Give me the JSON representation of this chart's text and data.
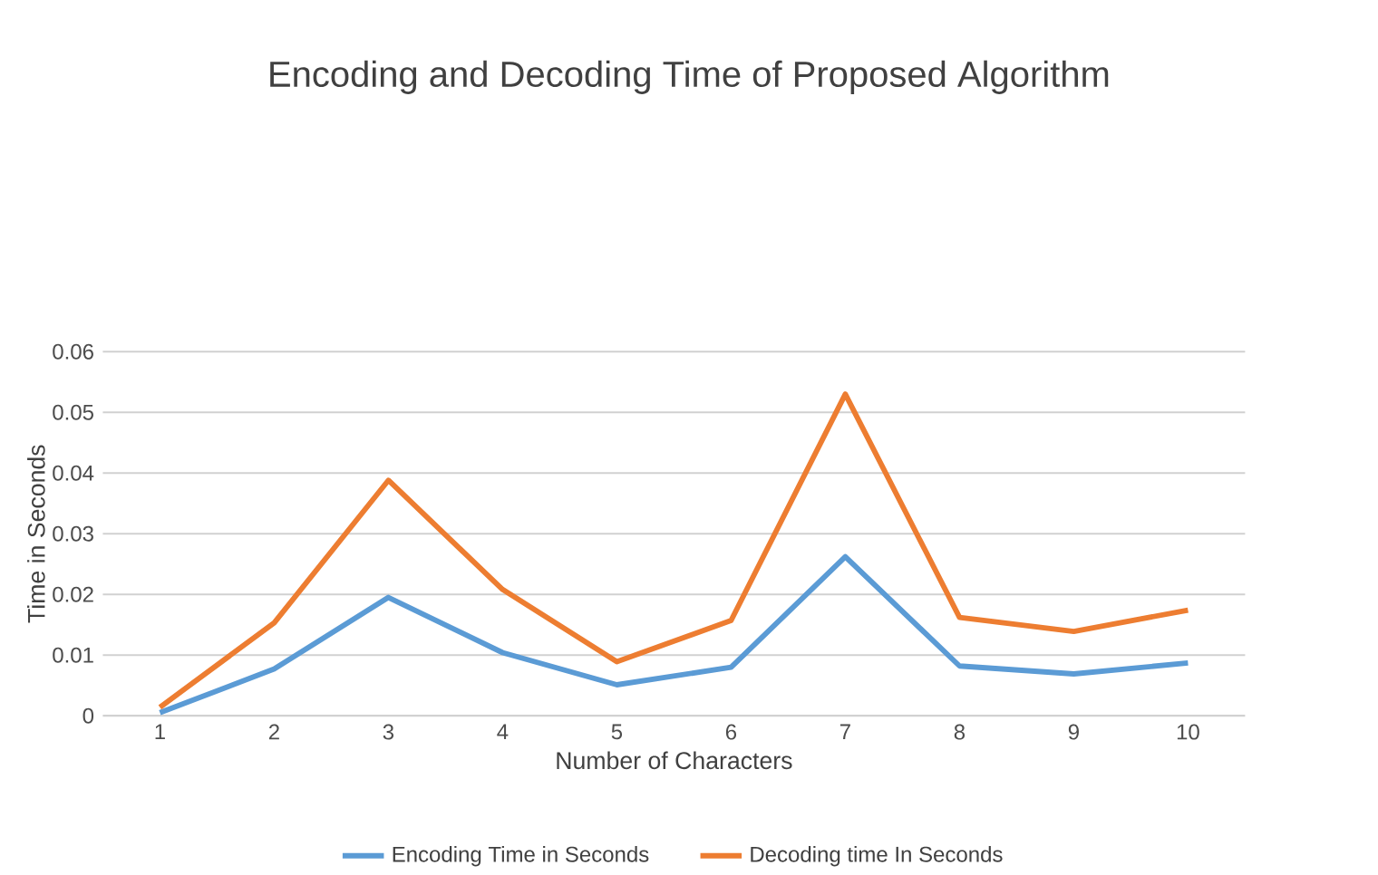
{
  "chart_data": {
    "type": "line",
    "title": "Encoding and Decoding Time of Proposed Algorithm",
    "xlabel": "Number of Characters",
    "ylabel": "Time in Seconds",
    "categories": [
      "1",
      "2",
      "3",
      "4",
      "5",
      "6",
      "7",
      "8",
      "9",
      "10"
    ],
    "series": [
      {
        "name": "Encoding Time in Seconds",
        "color": "#5b9bd5",
        "values": [
          0.0005,
          0.0077,
          0.0195,
          0.0104,
          0.0051,
          0.008,
          0.0262,
          0.0082,
          0.0069,
          0.0087
        ]
      },
      {
        "name": "Decoding time In Seconds",
        "color": "#ed7d31",
        "values": [
          0.0014,
          0.0153,
          0.0388,
          0.0208,
          0.0089,
          0.0157,
          0.053,
          0.0162,
          0.0139,
          0.0174
        ]
      }
    ],
    "ylim": [
      0,
      0.06
    ],
    "yticks": [
      0,
      0.01,
      0.02,
      0.03,
      0.04,
      0.05,
      0.06
    ],
    "grid": "y",
    "legend": "bottom"
  }
}
